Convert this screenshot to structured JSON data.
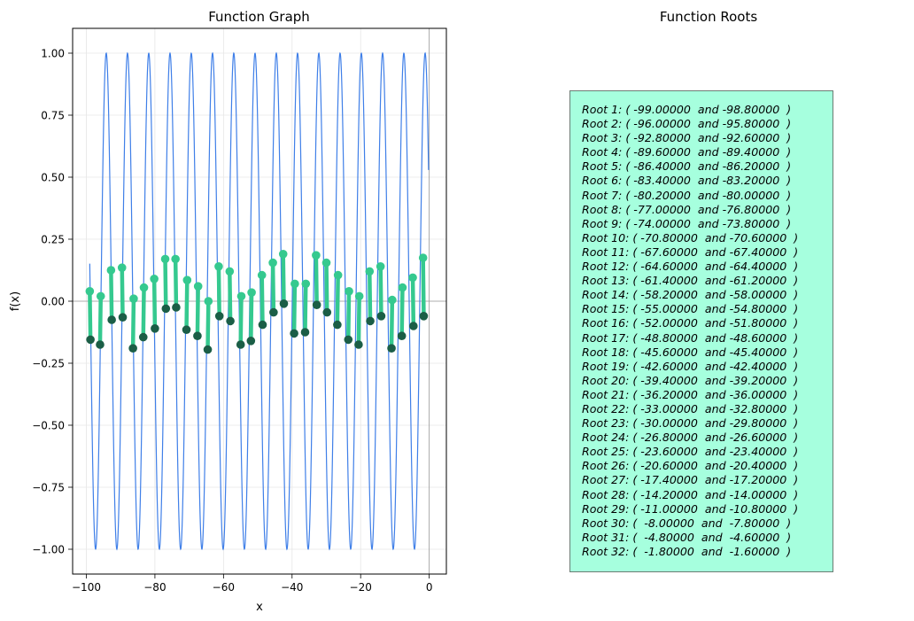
{
  "colors": {
    "curve": "#3f7fe8",
    "segment": "#35c98f",
    "root_point": "#35c98f",
    "dark_point": "#1b5e46",
    "panel_bg": "#a6ffde"
  },
  "chart_data": [
    {
      "type": "line",
      "title": "Function Graph",
      "xlabel": "x",
      "ylabel": "f(x)",
      "xlim": [
        -104,
        5
      ],
      "ylim": [
        -1.1,
        1.1
      ],
      "grid": true,
      "xticks": [
        -100,
        -80,
        -60,
        -40,
        -20,
        0
      ],
      "xtick_labels": [
        "−100",
        "−80",
        "−60",
        "−40",
        "−20",
        "0"
      ],
      "yticks": [
        1.0,
        0.75,
        0.5,
        0.25,
        0.0,
        -0.25,
        -0.5,
        -0.75,
        -1.0
      ],
      "ytick_labels": [
        "1.00",
        "0.75",
        "0.50",
        "0.25",
        "0.00",
        "−0.25",
        "−0.50",
        "−0.75",
        "−1.00"
      ],
      "series": [
        {
          "kind": "curve",
          "x_range": [
            -99,
            -0.2
          ],
          "period": 6.2,
          "phase_peak_x": -94.2,
          "amplitude": 1.0
        }
      ],
      "root_segments": [
        [
          -99.0,
          0.04,
          -98.8,
          -0.155
        ],
        [
          -96.0,
          -0.175,
          -95.8,
          0.02
        ],
        [
          -92.8,
          0.125,
          -92.6,
          -0.075
        ],
        [
          -89.6,
          0.135,
          -89.4,
          -0.065
        ],
        [
          -86.4,
          -0.19,
          -86.2,
          0.01
        ],
        [
          -83.4,
          -0.145,
          -83.2,
          0.055
        ],
        [
          -80.2,
          0.09,
          -80.0,
          -0.11
        ],
        [
          -77.0,
          0.17,
          -76.8,
          -0.03
        ],
        [
          -74.0,
          0.17,
          -73.8,
          -0.025
        ],
        [
          -70.8,
          -0.115,
          -70.6,
          0.085
        ],
        [
          -67.6,
          -0.14,
          -67.4,
          0.06
        ],
        [
          -64.6,
          -0.195,
          -64.4,
          0.0
        ],
        [
          -61.4,
          0.14,
          -61.2,
          -0.06
        ],
        [
          -58.2,
          0.12,
          -58.0,
          -0.08
        ],
        [
          -55.0,
          -0.175,
          -54.8,
          0.02
        ],
        [
          -52.0,
          -0.16,
          -51.8,
          0.035
        ],
        [
          -48.8,
          0.105,
          -48.6,
          -0.095
        ],
        [
          -45.6,
          0.155,
          -45.4,
          -0.045
        ],
        [
          -42.6,
          0.19,
          -42.4,
          -0.01
        ],
        [
          -39.4,
          -0.13,
          -39.2,
          0.07
        ],
        [
          -36.2,
          -0.125,
          -36.0,
          0.07
        ],
        [
          -33.0,
          0.185,
          -32.8,
          -0.015
        ],
        [
          -30.0,
          0.155,
          -29.8,
          -0.045
        ],
        [
          -26.8,
          -0.095,
          -26.6,
          0.105
        ],
        [
          -23.6,
          -0.155,
          -23.4,
          0.04
        ],
        [
          -20.6,
          -0.175,
          -20.4,
          0.02
        ],
        [
          -17.4,
          0.12,
          -17.2,
          -0.08
        ],
        [
          -14.2,
          0.14,
          -14.0,
          -0.06
        ],
        [
          -11.0,
          -0.19,
          -10.8,
          0.005
        ],
        [
          -8.0,
          -0.14,
          -7.8,
          0.055
        ],
        [
          -4.8,
          0.095,
          -4.6,
          -0.1
        ],
        [
          -1.8,
          0.175,
          -1.6,
          -0.06
        ]
      ]
    }
  ],
  "roots_panel": {
    "title": "Function Roots",
    "lines": [
      "Root 1: ( -99.00000  and -98.80000  )",
      "Root 2: ( -96.00000  and -95.80000  )",
      "Root 3: ( -92.80000  and -92.60000  )",
      "Root 4: ( -89.60000  and -89.40000  )",
      "Root 5: ( -86.40000  and -86.20000  )",
      "Root 6: ( -83.40000  and -83.20000  )",
      "Root 7: ( -80.20000  and -80.00000  )",
      "Root 8: ( -77.00000  and -76.80000  )",
      "Root 9: ( -74.00000  and -73.80000  )",
      "Root 10: ( -70.80000  and -70.60000  )",
      "Root 11: ( -67.60000  and -67.40000  )",
      "Root 12: ( -64.60000  and -64.40000  )",
      "Root 13: ( -61.40000  and -61.20000  )",
      "Root 14: ( -58.20000  and -58.00000  )",
      "Root 15: ( -55.00000  and -54.80000  )",
      "Root 16: ( -52.00000  and -51.80000  )",
      "Root 17: ( -48.80000  and -48.60000  )",
      "Root 18: ( -45.60000  and -45.40000  )",
      "Root 19: ( -42.60000  and -42.40000  )",
      "Root 20: ( -39.40000  and -39.20000  )",
      "Root 21: ( -36.20000  and -36.00000  )",
      "Root 22: ( -33.00000  and -32.80000  )",
      "Root 23: ( -30.00000  and -29.80000  )",
      "Root 24: ( -26.80000  and -26.60000  )",
      "Root 25: ( -23.60000  and -23.40000  )",
      "Root 26: ( -20.60000  and -20.40000  )",
      "Root 27: ( -17.40000  and -17.20000  )",
      "Root 28: ( -14.20000  and -14.00000  )",
      "Root 29: ( -11.00000  and -10.80000  )",
      "Root 30: (  -8.00000  and  -7.80000  )",
      "Root 31: (  -4.80000  and  -4.60000  )",
      "Root 32: (  -1.80000  and  -1.60000  )"
    ]
  }
}
